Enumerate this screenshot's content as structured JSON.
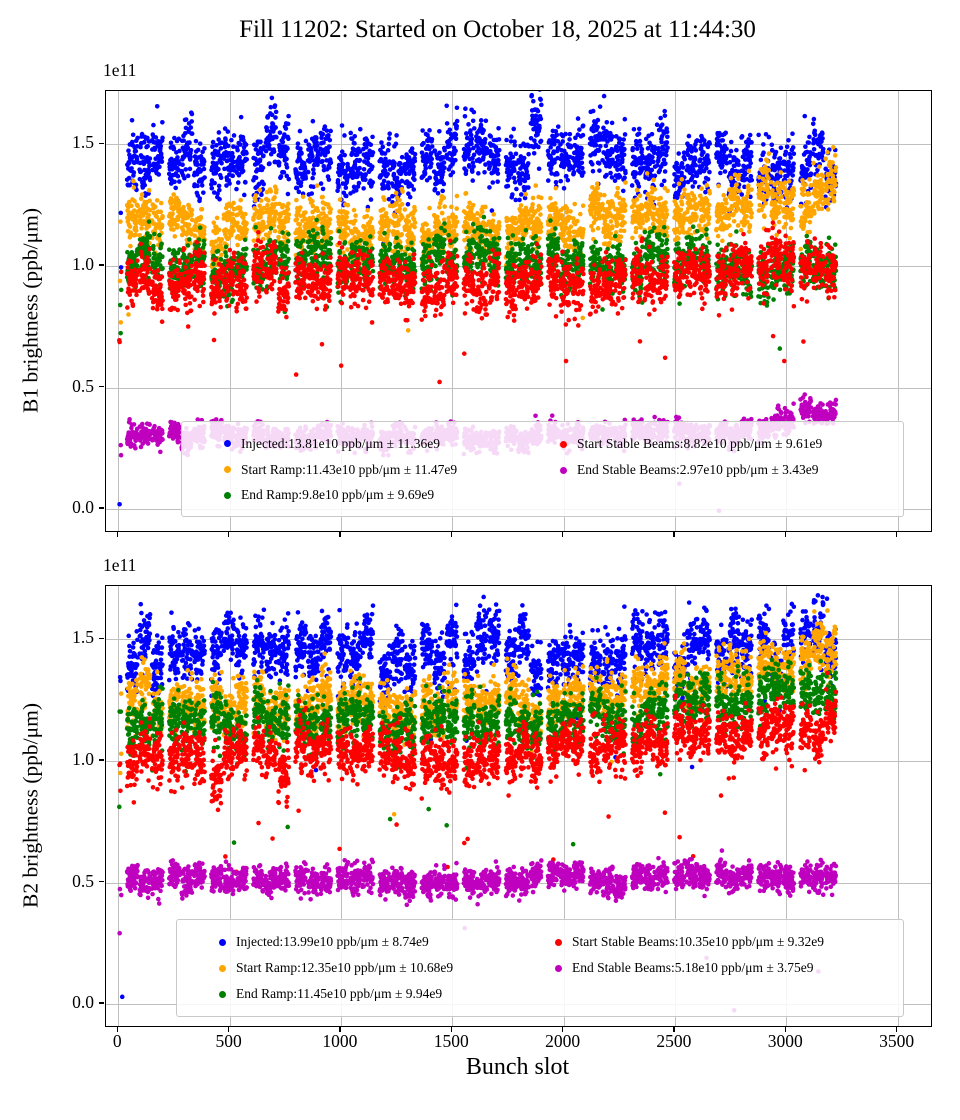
{
  "chart_data": {
    "type": "scatter",
    "title": "Fill 11202: Started on October 18, 2025 at 11:44:30",
    "xlabel": "Bunch slot",
    "xlim": [
      -55,
      3650
    ],
    "xtick_values": [
      0,
      500,
      1000,
      1500,
      2000,
      2500,
      3000,
      3500
    ],
    "xtick_labels": [
      "0",
      "500",
      "1000",
      "1500",
      "2000",
      "2500",
      "3000",
      "3500"
    ],
    "grid": true,
    "legend_position": "lower center",
    "x_max_slot": 3223,
    "bunch_pattern": {
      "start": 40,
      "groups": 17,
      "group_period": 189,
      "trains_per_group": 3,
      "train_length": 48,
      "train_gap": 8
    },
    "subplots": [
      {
        "ylabel": "B1 brightness (ppb/μm)",
        "offset_text": "1e11",
        "ylim": [
          -0.09,
          1.72
        ],
        "ytick_values": [
          0.0,
          0.5,
          1.0,
          1.5
        ],
        "ytick_labels": [
          "0.0",
          "0.5",
          "1.0",
          "1.5"
        ],
        "extra_points": [
          {
            "x": 6,
            "y": 0.02,
            "color": "#0000ff"
          }
        ],
        "series": [
          {
            "name": "Injected",
            "color": "#0000ff",
            "mean_e10": 13.81,
            "std_e9": 11.36,
            "legend": "Injected:13.81e10 ppb/μm ± 11.36e9",
            "plot": {
              "base": 1.43,
              "noise": 0.06,
              "train_sigma": 0.05,
              "saw": 0.06,
              "trend_x0": 2600,
              "trend_dy": -0.03,
              "out_p": 0.002,
              "pilot": 2
            }
          },
          {
            "name": "Start Ramp",
            "color": "#ffa500",
            "mean_e10": 11.43,
            "std_e9": 11.47,
            "legend": "Start Ramp:11.43e10 ppb/μm ± 11.47e9",
            "plot": {
              "base": 1.16,
              "noise": 0.05,
              "train_sigma": 0.035,
              "saw": 0.05,
              "trend_x0": 2300,
              "trend_dy": 0.18,
              "out_p": 0.003,
              "pilot": 3
            }
          },
          {
            "name": "End Ramp",
            "color": "#008000",
            "mean_e10": 9.8,
            "std_e9": 9.69,
            "legend": "End Ramp:9.8e10 ppb/μm ± 9.69e9",
            "plot": {
              "base": 1.02,
              "noise": 0.045,
              "train_sigma": 0.03,
              "saw": 0.05,
              "trend_x0": 2300,
              "trend_dy": -0.04,
              "out_p": 0.004,
              "pilot": 3
            }
          },
          {
            "name": "Start Stable Beams",
            "color": "#ff0000",
            "mean_e10": 8.82,
            "std_e9": 9.61,
            "legend": "Start Stable Beams:8.82e10 ppb/μm ± 9.61e9",
            "plot": {
              "base": 0.93,
              "noise": 0.05,
              "train_sigma": 0.03,
              "saw": 0.05,
              "trend_x0": 2000,
              "trend_dy": 0.08,
              "out_p": 0.005,
              "pilot": 3
            }
          },
          {
            "name": "End Stable Beams",
            "color": "#bf00bf",
            "mean_e10": 2.97,
            "std_e9": 3.43,
            "legend": "End Stable Beams:2.97e10 ppb/μm ± 3.43e9",
            "plot": {
              "base": 0.3,
              "noise": 0.022,
              "train_sigma": 0.012,
              "saw": 0.02,
              "trend_x0": 2600,
              "trend_dy": 0.1,
              "out_p": 0.002,
              "pilot": 2
            }
          }
        ]
      },
      {
        "ylabel": "B2 brightness (ppb/μm)",
        "offset_text": "1e11",
        "ylim": [
          -0.09,
          1.72
        ],
        "ytick_values": [
          0.0,
          0.5,
          1.0,
          1.5
        ],
        "ytick_labels": [
          "0.0",
          "0.5",
          "1.0",
          "1.5"
        ],
        "extra_points": [
          {
            "x": 18,
            "y": 0.03,
            "color": "#0000ff"
          }
        ],
        "series": [
          {
            "name": "Injected",
            "color": "#0000ff",
            "mean_e10": 13.99,
            "std_e9": 8.74,
            "legend": "Injected:13.99e10 ppb/μm ± 8.74e9",
            "plot": {
              "base": 1.44,
              "noise": 0.055,
              "train_sigma": 0.045,
              "saw": 0.06,
              "trend_x0": 2600,
              "trend_dy": 0.05,
              "out_p": 0.003,
              "pilot": 2
            }
          },
          {
            "name": "Start Ramp",
            "color": "#ffa500",
            "mean_e10": 12.35,
            "std_e9": 10.68,
            "legend": "Start Ramp:12.35e10 ppb/μm ± 10.68e9",
            "plot": {
              "base": 1.24,
              "noise": 0.05,
              "train_sigma": 0.035,
              "saw": 0.05,
              "trend_x0": 2000,
              "trend_dy": 0.2,
              "out_p": 0.003,
              "pilot": 3
            }
          },
          {
            "name": "End Ramp",
            "color": "#008000",
            "mean_e10": 11.45,
            "std_e9": 9.94,
            "legend": "End Ramp:11.45e10 ppb/μm ± 9.94e9",
            "plot": {
              "base": 1.16,
              "noise": 0.05,
              "train_sigma": 0.03,
              "saw": 0.05,
              "trend_x0": 2000,
              "trend_dy": 0.15,
              "out_p": 0.004,
              "pilot": 3
            }
          },
          {
            "name": "Start Stable Beams",
            "color": "#ff0000",
            "mean_e10": 10.35,
            "std_e9": 9.32,
            "legend": "Start Stable Beams:10.35e10 ppb/μm ± 9.32e9",
            "plot": {
              "base": 1.02,
              "noise": 0.05,
              "train_sigma": 0.03,
              "saw": 0.05,
              "trend_x0": 2000,
              "trend_dy": 0.13,
              "out_p": 0.009,
              "pilot": 3
            }
          },
          {
            "name": "End Stable Beams",
            "color": "#bf00bf",
            "mean_e10": 5.18,
            "std_e9": 3.75,
            "legend": "End Stable Beams:5.18e10 ppb/μm ± 3.75e9",
            "plot": {
              "base": 0.51,
              "noise": 0.028,
              "train_sigma": 0.014,
              "saw": 0.02,
              "trend_x0": 2600,
              "trend_dy": 0.02,
              "out_p": 0.002,
              "pilot": 3
            }
          }
        ]
      }
    ]
  }
}
